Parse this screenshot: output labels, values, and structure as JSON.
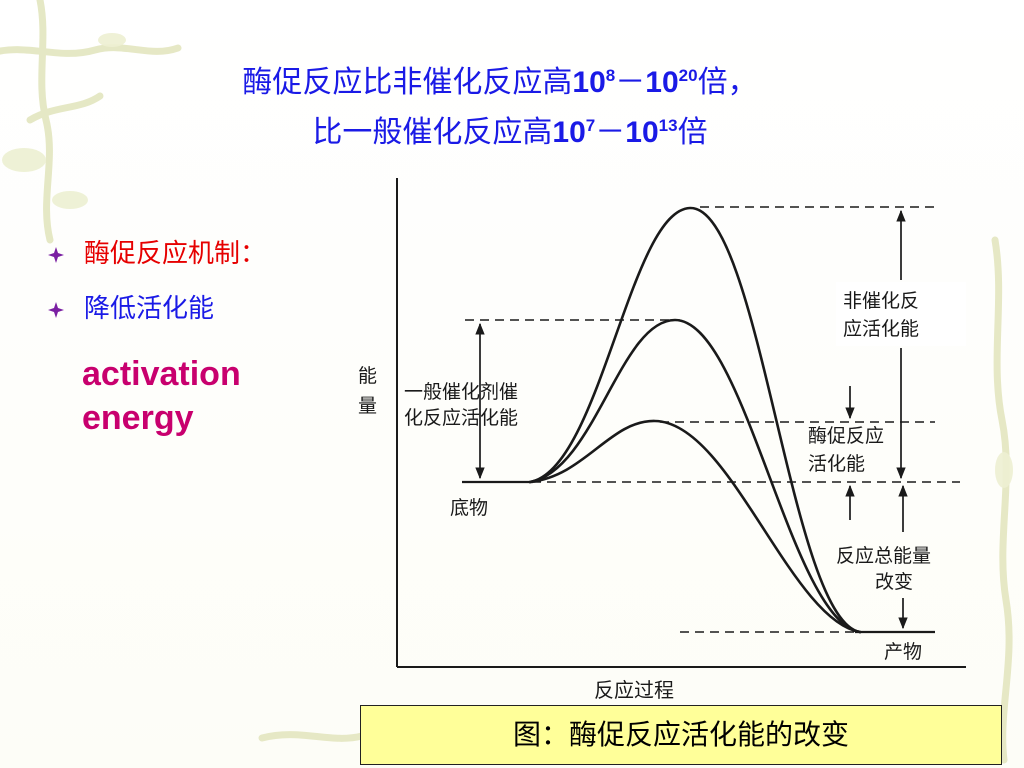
{
  "title": {
    "line1_prefix": "酶促反应比非催化反应高",
    "line1_base1": "10",
    "line1_exp1": "8",
    "line1_dash": "－",
    "line1_base2": "10",
    "line1_exp2": "20",
    "line1_suffix": "倍，",
    "line2_prefix": "比一般催化反应高",
    "line2_base1": "10",
    "line2_exp1": "7",
    "line2_dash": "－",
    "line2_base2": "10",
    "line2_exp2": "13",
    "line2_suffix": "倍"
  },
  "bullets": [
    {
      "text": "酶促反应机制：",
      "color": "#e60000"
    },
    {
      "text": "降低活化能",
      "color": "#1a1ae6"
    }
  ],
  "english_term": {
    "line1": "activation",
    "line2": "energy",
    "color": "#c8006e"
  },
  "diagram": {
    "y_axis_label_1": "能",
    "y_axis_label_2": "量",
    "x_axis_label": "反应过程",
    "substrate_label": "底物",
    "product_label": "产物",
    "general_catalyst_label_1": "一般催化剂催",
    "general_catalyst_label_2": "化反应活化能",
    "non_catalytic_label_1": "非催化反",
    "non_catalytic_label_2": "应活化能",
    "enzyme_label_1": "酶促反应",
    "enzyme_label_2": "活化能",
    "total_change_label_1": "反应总能量",
    "total_change_label_2": "改变"
  },
  "caption": "图：酶促反应活化能的改变",
  "colors": {
    "title": "#1a1ae6",
    "caption_background": "#ffff99"
  }
}
